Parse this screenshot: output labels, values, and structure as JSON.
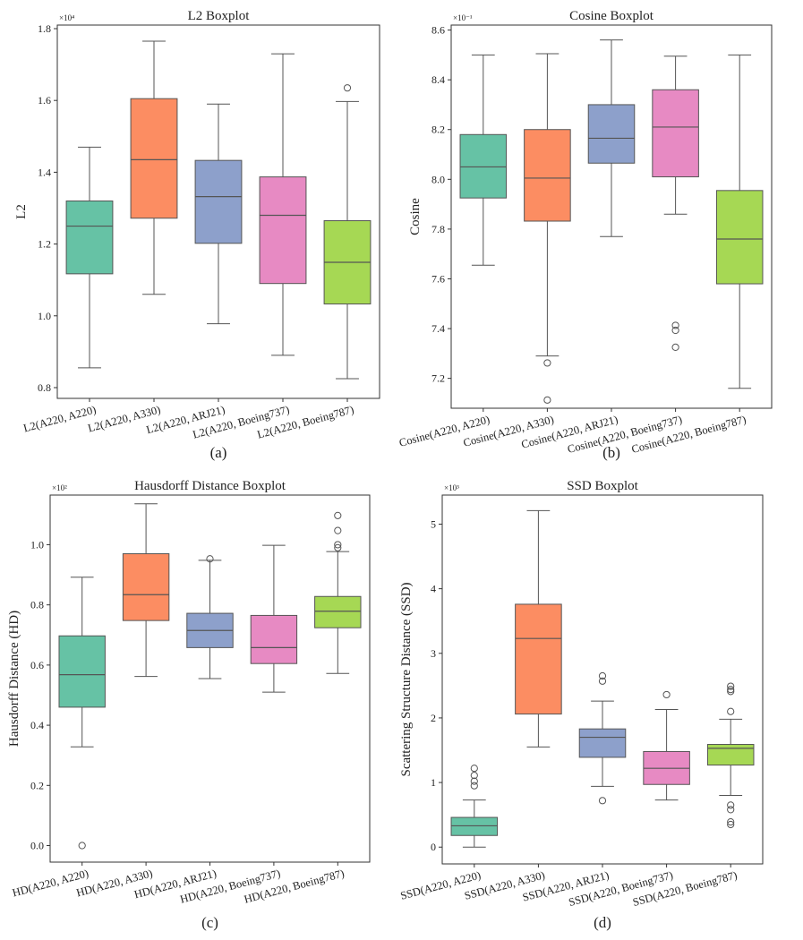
{
  "colors": [
    "#66c2a5",
    "#fc8d62",
    "#8da0cb",
    "#e78ac3",
    "#a6d854"
  ],
  "chart_data": [
    {
      "type": "box",
      "title": "L2 Boxplot",
      "ylabel": "L2",
      "scale_label": "×10⁴",
      "caption": "(a)",
      "ylim": [
        0.77,
        1.81
      ],
      "yticks": [
        0.8,
        1.0,
        1.2,
        1.4,
        1.6,
        1.8
      ],
      "ytick_labels": [
        "0.8",
        "1.0",
        "1.2",
        "1.4",
        "1.6",
        "1.8"
      ],
      "categories": [
        "L2(A220, A220)",
        "L2(A220, A330)",
        "L2(A220, ARJ21)",
        "L2(A220, Boeing737)",
        "L2(A220, Boeing787)"
      ],
      "boxes": [
        {
          "whislo": 0.855,
          "q1": 1.117,
          "med": 1.25,
          "q3": 1.32,
          "whishi": 1.47,
          "fliers": []
        },
        {
          "whislo": 1.06,
          "q1": 1.272,
          "med": 1.435,
          "q3": 1.605,
          "whishi": 1.765,
          "fliers": []
        },
        {
          "whislo": 0.978,
          "q1": 1.202,
          "med": 1.332,
          "q3": 1.433,
          "whishi": 1.59,
          "fliers": []
        },
        {
          "whislo": 0.89,
          "q1": 1.09,
          "med": 1.28,
          "q3": 1.387,
          "whishi": 1.73,
          "fliers": []
        },
        {
          "whislo": 0.825,
          "q1": 1.033,
          "med": 1.149,
          "q3": 1.265,
          "whishi": 1.597,
          "fliers": [
            1.635
          ]
        }
      ]
    },
    {
      "type": "box",
      "title": "Cosine Boxplot",
      "ylabel": "Cosine",
      "scale_label": "×10⁻¹",
      "caption": "(b)",
      "ylim": [
        7.08,
        8.62
      ],
      "yticks": [
        7.2,
        7.4,
        7.6,
        7.8,
        8.0,
        8.2,
        8.4,
        8.6
      ],
      "ytick_labels": [
        "7.2",
        "7.4",
        "7.6",
        "7.8",
        "8.0",
        "8.2",
        "8.4",
        "8.6"
      ],
      "categories": [
        "Cosine(A220, A220)",
        "Cosine(A220, A330)",
        "Cosine(A220, ARJ21)",
        "Cosine(A220, Boeing737)",
        "Cosine(A220, Boeing787)"
      ],
      "boxes": [
        {
          "whislo": 7.655,
          "q1": 7.925,
          "med": 8.05,
          "q3": 8.18,
          "whishi": 8.5,
          "fliers": []
        },
        {
          "whislo": 7.29,
          "q1": 7.832,
          "med": 8.005,
          "q3": 8.2,
          "whishi": 8.505,
          "fliers": [
            7.262,
            7.113
          ]
        },
        {
          "whislo": 7.77,
          "q1": 8.065,
          "med": 8.165,
          "q3": 8.3,
          "whishi": 8.56,
          "fliers": []
        },
        {
          "whislo": 7.86,
          "q1": 8.01,
          "med": 8.21,
          "q3": 8.36,
          "whishi": 8.495,
          "fliers": [
            7.413,
            7.393,
            7.325
          ]
        },
        {
          "whislo": 7.16,
          "q1": 7.58,
          "med": 7.76,
          "q3": 7.955,
          "whishi": 8.5,
          "fliers": []
        }
      ]
    },
    {
      "type": "box",
      "title": "Hausdorff Distance Boxplot",
      "ylabel": "Hausdorff Distance (HD)",
      "scale_label": "×10²",
      "caption": "(c)",
      "ylim": [
        -0.055,
        1.165
      ],
      "yticks": [
        0.0,
        0.2,
        0.4,
        0.6,
        0.8,
        1.0
      ],
      "ytick_labels": [
        "0.0",
        "0.2",
        "0.4",
        "0.6",
        "0.8",
        "1.0"
      ],
      "categories": [
        "HD(A220, A220)",
        "HD(A220, A330)",
        "HD(A220, ARJ21)",
        "HD(A220, Boeing737)",
        "HD(A220, Boeing787)"
      ],
      "boxes": [
        {
          "whislo": 0.328,
          "q1": 0.46,
          "med": 0.568,
          "q3": 0.697,
          "whishi": 0.892,
          "fliers": [
            0.0
          ]
        },
        {
          "whislo": 0.562,
          "q1": 0.748,
          "med": 0.834,
          "q3": 0.97,
          "whishi": 1.136,
          "fliers": []
        },
        {
          "whislo": 0.555,
          "q1": 0.658,
          "med": 0.715,
          "q3": 0.772,
          "whishi": 0.948,
          "fliers": [
            0.953
          ]
        },
        {
          "whislo": 0.51,
          "q1": 0.605,
          "med": 0.658,
          "q3": 0.765,
          "whishi": 0.998,
          "fliers": []
        },
        {
          "whislo": 0.572,
          "q1": 0.724,
          "med": 0.779,
          "q3": 0.828,
          "whishi": 0.977,
          "fliers": [
            0.99,
            1.0,
            1.047,
            1.097
          ]
        }
      ]
    },
    {
      "type": "box",
      "title": "SSD Boxplot",
      "ylabel": "Scattering Structure Distance (SSD)",
      "scale_label": "×10³",
      "caption": "(d)",
      "ylim": [
        -0.26,
        5.45
      ],
      "yticks": [
        0,
        1,
        2,
        3,
        4,
        5
      ],
      "ytick_labels": [
        "0",
        "1",
        "2",
        "3",
        "4",
        "5"
      ],
      "categories": [
        "SSD(A220, A220)",
        "SSD(A220, A330)",
        "SSD(A220, ARJ21)",
        "SSD(A220, Boeing737)",
        "SSD(A220, Boeing787)"
      ],
      "boxes": [
        {
          "whislo": 0.0,
          "q1": 0.18,
          "med": 0.33,
          "q3": 0.46,
          "whishi": 0.73,
          "fliers": [
            0.95,
            1.02,
            1.11,
            1.22
          ]
        },
        {
          "whislo": 1.55,
          "q1": 2.06,
          "med": 3.23,
          "q3": 3.76,
          "whishi": 5.21,
          "fliers": []
        },
        {
          "whislo": 0.94,
          "q1": 1.39,
          "med": 1.7,
          "q3": 1.83,
          "whishi": 2.26,
          "fliers": [
            0.72,
            2.57,
            2.65
          ]
        },
        {
          "whislo": 0.73,
          "q1": 0.97,
          "med": 1.22,
          "q3": 1.48,
          "whishi": 2.13,
          "fliers": [
            2.36
          ]
        },
        {
          "whislo": 0.8,
          "q1": 1.27,
          "med": 1.53,
          "q3": 1.59,
          "whishi": 1.98,
          "fliers": [
            0.35,
            0.39,
            0.58,
            0.65,
            2.1,
            2.41,
            2.44,
            2.49
          ]
        }
      ]
    }
  ]
}
